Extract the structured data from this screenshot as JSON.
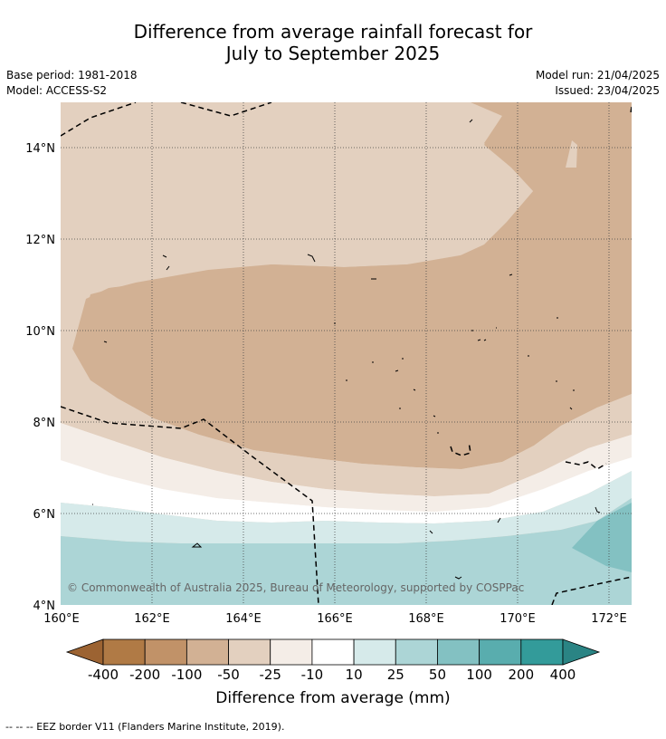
{
  "header": {
    "title_line1": "Difference from average rainfall forecast for",
    "title_line2": "July to September 2025",
    "base_period": "Base period: 1981-2018",
    "model": "Model: ACCESS-S2",
    "model_run": "Model run: 21/04/2025",
    "issued": "Issued: 23/04/2025"
  },
  "map": {
    "lat_labels": [
      "14°N",
      "12°N",
      "10°N",
      "8°N",
      "6°N",
      "4°N"
    ],
    "lon_labels": [
      "160°E",
      "162°E",
      "164°E",
      "166°E",
      "168°E",
      "170°E",
      "172°E"
    ],
    "lat_range": [
      4,
      15
    ],
    "lon_range": [
      160,
      172.5
    ],
    "grid": true,
    "copyright": "© Commonwealth of Australia 2025, Bureau of Meteorology, supported by COSPPac"
  },
  "colorbar": {
    "labels": [
      "-400",
      "-200",
      "-100",
      "-50",
      "-25",
      "-10",
      "10",
      "25",
      "50",
      "100",
      "200",
      "400"
    ],
    "colors": [
      "#9c6332",
      "#b07a45",
      "#c19268",
      "#d2b194",
      "#e3d0bf",
      "#f4ede7",
      "#ffffff",
      "#d6eaea",
      "#acd5d6",
      "#83c1c2",
      "#59adae",
      "#339b9a",
      "#2a8484"
    ],
    "title": "Difference from average (mm)"
  },
  "legend": {
    "eez_text": "--  --  -- EEZ border V11 (Flanders Marine Institute, 2019)."
  }
}
